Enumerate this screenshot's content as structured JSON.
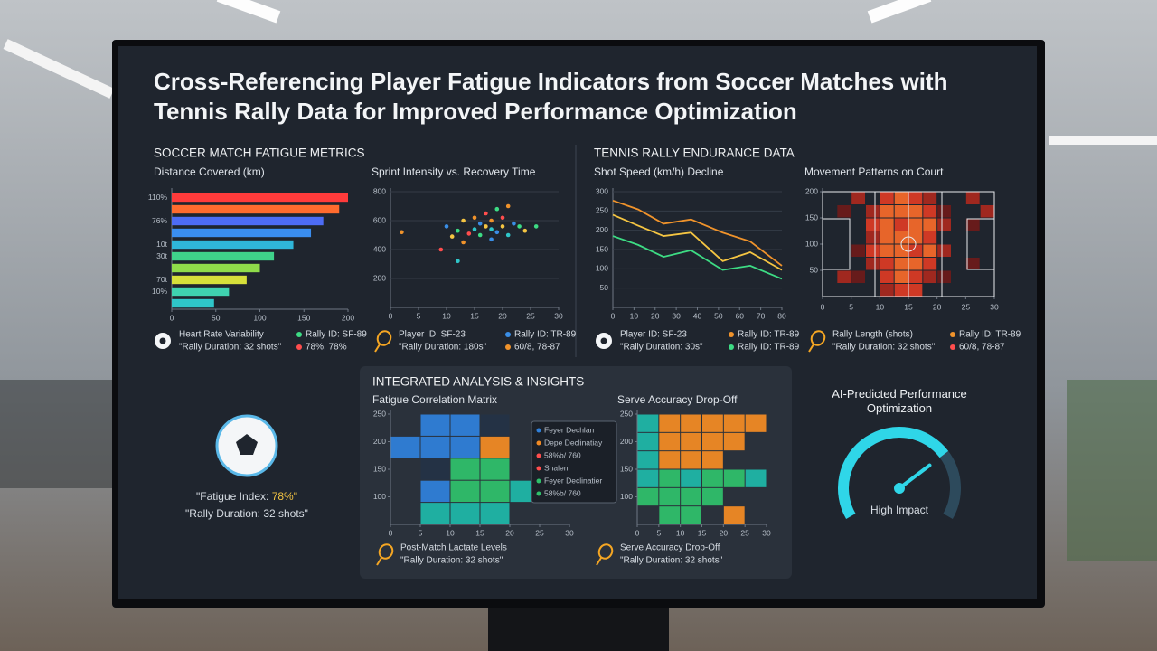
{
  "title": "Cross-Referencing Player Fatigue Indicators from Soccer Matches with Tennis Rally Data for Improved Performance Optimization",
  "sections": {
    "soccer": "SOCCER MATCH FATIGUE METRICS",
    "tennis": "TENNIS RALLY ENDURANCE DATA",
    "integrated": "INTEGRATED ANALYSIS & INSIGHTS"
  },
  "card": {
    "fatigue_label": "\"Fatigue Index: ",
    "fatigue_value": "78%\"",
    "rally": "\"Rally Duration: 32 shots\""
  },
  "legends": [
    {
      "items": [
        {
          "text": "Heart Rate Variability"
        },
        {
          "text": "Rally ID: SF-89",
          "color": "#3ddc84"
        },
        {
          "text": "\"Rally Duration: 32 shots\""
        },
        {
          "text": "78%, 78%",
          "color": "#ff4d4d"
        }
      ]
    },
    {
      "items": [
        {
          "text": "Player ID: SF-23"
        },
        {
          "text": "Rally ID: TR-89",
          "color": "#3a8ee6"
        },
        {
          "text": "\"Rally Duration: 180s\""
        },
        {
          "text": "60/8, 78-87",
          "color": "#f0932b"
        }
      ]
    },
    {
      "items": [
        {
          "text": "Player ID: SF-23"
        },
        {
          "text": "Rally ID: TR-89",
          "color": "#f0932b"
        },
        {
          "text": "\"Rally Duration: 30s\""
        },
        {
          "text": "Rally ID: TR-89",
          "color": "#3ddc84"
        }
      ]
    },
    {
      "items": [
        {
          "text": "Rally Length (shots)"
        },
        {
          "text": "Rally ID: TR-89",
          "color": "#f0932b"
        },
        {
          "text": "\"Rally Duration: 32 shots\""
        },
        {
          "text": "60/8, 78-87",
          "color": "#ff4d4d"
        }
      ]
    },
    {
      "items": [
        {
          "text": "Post-Match Lactate Levels"
        },
        {
          "text": "\"Rally Duration: 32 shots\""
        }
      ]
    },
    {
      "items": [
        {
          "text": "Serve Accuracy Drop-Off"
        },
        {
          "text": "\"Rally Duration: 32 shots\""
        }
      ]
    }
  ],
  "chart_data": [
    {
      "type": "hbar",
      "title": "Distance Covered (km)",
      "categories": [
        "110%",
        null,
        "76%",
        null,
        "10t",
        "30t",
        null,
        "70t",
        "10%",
        null
      ],
      "values": [
        200,
        190,
        172,
        158,
        138,
        116,
        100,
        85,
        65,
        48
      ],
      "colors": [
        "#ff3b3b",
        "#ff6b2e",
        "#4d6cf5",
        "#3a8ef0",
        "#2fb6d9",
        "#3fd28a",
        "#8fdc4a",
        "#d6e03a",
        "#3fd2b0",
        "#2fc6c9"
      ],
      "xlim": [
        0,
        200
      ],
      "xticks": [
        0,
        50,
        100,
        150,
        200
      ]
    },
    {
      "type": "scatter",
      "title": "Sprint Intensity vs. Recovery Time",
      "x": [
        2,
        10,
        12,
        13,
        14,
        15,
        15,
        16,
        16,
        17,
        17,
        18,
        18,
        19,
        19,
        20,
        20,
        21,
        21,
        22,
        23,
        24,
        9,
        12,
        13,
        18,
        26,
        11
      ],
      "values": [
        520,
        560,
        530,
        600,
        510,
        540,
        620,
        580,
        500,
        560,
        650,
        540,
        600,
        520,
        680,
        560,
        620,
        500,
        700,
        580,
        560,
        530,
        400,
        320,
        450,
        470,
        560,
        490
      ],
      "palette": [
        "#f0932b",
        "#3a8ee6",
        "#3ddc84",
        "#f5c542",
        "#ff4d4d",
        "#2fc6c9"
      ],
      "xlim": [
        0,
        30
      ],
      "ylim": [
        0,
        800
      ],
      "xticks": [
        0,
        5,
        10,
        15,
        20,
        25,
        30
      ],
      "yticks": [
        200,
        400,
        600,
        800
      ],
      "grid": true
    },
    {
      "type": "line",
      "title": "Shot Speed (km/h) Decline",
      "x": [
        0,
        12,
        24,
        37,
        52,
        65,
        80
      ],
      "series": [
        {
          "name": "Rally ID: TR-89",
          "color": "#f0932b",
          "values": [
            277,
            254,
            217,
            228,
            194,
            171,
            108
          ]
        },
        {
          "name": "Player ID: SF-23",
          "color": "#f5c542",
          "values": [
            240,
            212,
            185,
            194,
            120,
            143,
            97
          ]
        },
        {
          "name": "Rally ID: TR-89",
          "color": "#3ddc84",
          "values": [
            185,
            162,
            131,
            148,
            97,
            108,
            74
          ]
        }
      ],
      "xlim": [
        0,
        80
      ],
      "ylim": [
        0,
        300
      ],
      "xticks": [
        0,
        10,
        20,
        30,
        40,
        50,
        60,
        70,
        80
      ],
      "yticks": [
        50,
        100,
        150,
        200,
        250,
        300
      ],
      "grid": true
    },
    {
      "type": "heatmap",
      "title": "Movement Patterns on Court",
      "matrix": [
        [
          null,
          null,
          2,
          null,
          3,
          4,
          3,
          2,
          null,
          null,
          2,
          null
        ],
        [
          null,
          1,
          null,
          2,
          4,
          4,
          4,
          3,
          1,
          null,
          null,
          2
        ],
        [
          null,
          null,
          null,
          3,
          4,
          3,
          4,
          4,
          2,
          null,
          1,
          null
        ],
        [
          null,
          null,
          null,
          2,
          4,
          4,
          4,
          3,
          null,
          null,
          null,
          null
        ],
        [
          null,
          null,
          1,
          3,
          4,
          4,
          3,
          4,
          2,
          null,
          null,
          null
        ],
        [
          null,
          null,
          null,
          2,
          3,
          4,
          4,
          3,
          null,
          null,
          1,
          null
        ],
        [
          null,
          2,
          1,
          null,
          3,
          4,
          3,
          2,
          1,
          null,
          null,
          null
        ],
        [
          null,
          null,
          null,
          null,
          2,
          3,
          3,
          null,
          null,
          null,
          null,
          null
        ]
      ],
      "colors": [
        "#6b1a1a",
        "#a8281f",
        "#d93a25",
        "#f2682a"
      ],
      "xlim": [
        0,
        30
      ],
      "ylim": [
        0,
        200
      ],
      "xticks": [
        0,
        5,
        10,
        15,
        20,
        25,
        30
      ],
      "yticks": [
        50,
        100,
        150,
        200
      ]
    },
    {
      "type": "heatmap",
      "title": "Fatigue Correlation Matrix",
      "matrix": [
        [
          null,
          1,
          1,
          5,
          null,
          null
        ],
        [
          1,
          1,
          1,
          2,
          null,
          null
        ],
        [
          null,
          5,
          3,
          3,
          null,
          null
        ],
        [
          null,
          1,
          3,
          3,
          4,
          null
        ],
        [
          null,
          4,
          4,
          4,
          null,
          null
        ]
      ],
      "colors": [
        "#2f7fd8",
        "#f08a24",
        "#2fbf6a",
        "#1fb6a6",
        "#243346"
      ],
      "tooltip": [
        {
          "text": "Feyer Dechlan",
          "color": "#2f7fd8"
        },
        {
          "text": "Depe Declinatiay",
          "color": "#f08a24"
        },
        {
          "text": "58%b/ 760",
          "color": "#ff4d4d"
        },
        {
          "text": "Shalenl",
          "color": "#ff4d4d"
        },
        {
          "text": "Feyer Declinatier",
          "color": "#2fbf6a"
        },
        {
          "text": "58%b/ 760",
          "color": "#2fbf6a"
        }
      ],
      "xlim": [
        0,
        30
      ],
      "ylim": [
        50,
        250
      ],
      "xticks": [
        0,
        5,
        10,
        15,
        20,
        25,
        30
      ],
      "yticks": [
        100,
        150,
        200,
        250
      ]
    },
    {
      "type": "heatmap",
      "title": "Serve Accuracy Drop-Off",
      "matrix": [
        [
          3,
          1,
          1,
          1,
          1,
          1
        ],
        [
          3,
          1,
          1,
          1,
          1,
          null
        ],
        [
          3,
          1,
          1,
          1,
          null,
          null
        ],
        [
          3,
          2,
          3,
          2,
          2,
          3
        ],
        [
          2,
          2,
          2,
          2,
          null,
          null
        ],
        [
          null,
          2,
          2,
          null,
          1,
          null
        ]
      ],
      "colors": [
        "#f08a24",
        "#2fbf6a",
        "#1fb6a6"
      ],
      "xlim": [
        0,
        30
      ],
      "ylim": [
        50,
        250
      ],
      "xticks": [
        0,
        5,
        10,
        15,
        20,
        25,
        30
      ],
      "yticks": [
        100,
        150,
        200,
        250
      ]
    },
    {
      "type": "gauge",
      "title": "AI-Predicted Performance Optimization",
      "value": 72,
      "lim": [
        0,
        100
      ],
      "label": "High Impact",
      "color": "#2fd6e8"
    }
  ]
}
